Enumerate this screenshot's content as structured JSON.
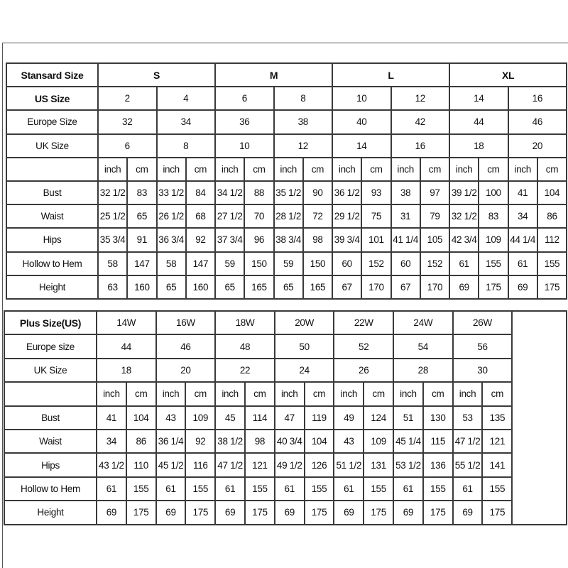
{
  "standard": {
    "header_label": "Stansard Size",
    "groups": [
      "S",
      "M",
      "L",
      "XL"
    ],
    "us_label": "US Size",
    "us": [
      "2",
      "4",
      "6",
      "8",
      "10",
      "12",
      "14",
      "16"
    ],
    "europe_label": "Europe Size",
    "europe": [
      "32",
      "34",
      "36",
      "38",
      "40",
      "42",
      "44",
      "46"
    ],
    "uk_label": "UK Size",
    "uk": [
      "6",
      "8",
      "10",
      "12",
      "14",
      "16",
      "18",
      "20"
    ],
    "unit_inch": "inch",
    "unit_cm": "cm",
    "measurements": [
      {
        "label": "Bust",
        "values": [
          "32 1/2",
          "83",
          "33 1/2",
          "84",
          "34 1/2",
          "88",
          "35 1/2",
          "90",
          "36 1/2",
          "93",
          "38",
          "97",
          "39 1/2",
          "100",
          "41",
          "104"
        ]
      },
      {
        "label": "Waist",
        "values": [
          "25 1/2",
          "65",
          "26 1/2",
          "68",
          "27 1/2",
          "70",
          "28 1/2",
          "72",
          "29 1/2",
          "75",
          "31",
          "79",
          "32 1/2",
          "83",
          "34",
          "86"
        ]
      },
      {
        "label": "Hips",
        "values": [
          "35 3/4",
          "91",
          "36 3/4",
          "92",
          "37 3/4",
          "96",
          "38 3/4",
          "98",
          "39 3/4",
          "101",
          "41 1/4",
          "105",
          "42 3/4",
          "109",
          "44 1/4",
          "112"
        ]
      },
      {
        "label": "Hollow to Hem",
        "values": [
          "58",
          "147",
          "58",
          "147",
          "59",
          "150",
          "59",
          "150",
          "60",
          "152",
          "60",
          "152",
          "61",
          "155",
          "61",
          "155"
        ]
      },
      {
        "label": "Height",
        "values": [
          "63",
          "160",
          "65",
          "160",
          "65",
          "165",
          "65",
          "165",
          "67",
          "170",
          "67",
          "170",
          "69",
          "175",
          "69",
          "175"
        ]
      }
    ]
  },
  "plus": {
    "header_label": "Plus Size(US)",
    "sizes": [
      "14W",
      "16W",
      "18W",
      "20W",
      "22W",
      "24W",
      "26W"
    ],
    "europe_label": "Europe size",
    "europe": [
      "44",
      "46",
      "48",
      "50",
      "52",
      "54",
      "56"
    ],
    "uk_label": "UK Size",
    "uk": [
      "18",
      "20",
      "22",
      "24",
      "26",
      "28",
      "30"
    ],
    "unit_inch": "inch",
    "unit_cm": "cm",
    "measurements": [
      {
        "label": "Bust",
        "values": [
          "41",
          "104",
          "43",
          "109",
          "45",
          "114",
          "47",
          "119",
          "49",
          "124",
          "51",
          "130",
          "53",
          "135"
        ]
      },
      {
        "label": "Waist",
        "values": [
          "34",
          "86",
          "36 1/4",
          "92",
          "38 1/2",
          "98",
          "40 3/4",
          "104",
          "43",
          "109",
          "45 1/4",
          "115",
          "47 1/2",
          "121"
        ]
      },
      {
        "label": "Hips",
        "values": [
          "43 1/2",
          "110",
          "45 1/2",
          "116",
          "47 1/2",
          "121",
          "49 1/2",
          "126",
          "51 1/2",
          "131",
          "53 1/2",
          "136",
          "55 1/2",
          "141"
        ]
      },
      {
        "label": "Hollow to Hem",
        "values": [
          "61",
          "155",
          "61",
          "155",
          "61",
          "155",
          "61",
          "155",
          "61",
          "155",
          "61",
          "155",
          "61",
          "155"
        ]
      },
      {
        "label": "Height",
        "values": [
          "69",
          "175",
          "69",
          "175",
          "69",
          "175",
          "69",
          "175",
          "69",
          "175",
          "69",
          "175",
          "69",
          "175"
        ]
      }
    ]
  }
}
